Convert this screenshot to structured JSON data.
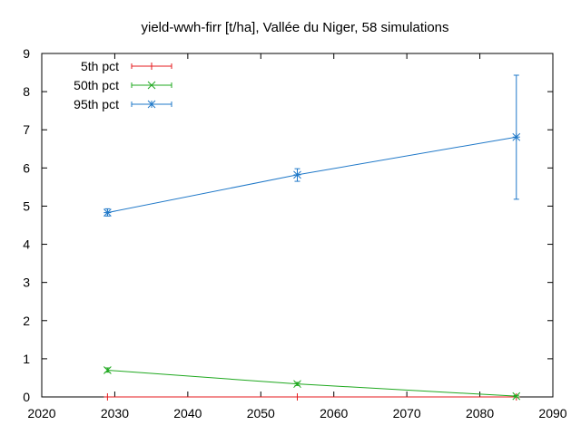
{
  "chart_data": {
    "type": "line",
    "title": "yield-wwh-firr [t/ha], Vallée du Niger, 58 simulations",
    "xlabel": "",
    "ylabel": "",
    "xlim": [
      2020,
      2090
    ],
    "ylim": [
      0,
      9
    ],
    "x_ticks": [
      "2020",
      "2030",
      "2040",
      "2050",
      "2060",
      "2070",
      "2080",
      "2090"
    ],
    "y_ticks": [
      "0",
      "1",
      "2",
      "3",
      "4",
      "5",
      "6",
      "7",
      "8",
      "9"
    ],
    "grid": false,
    "legend_position": "top-left",
    "series": [
      {
        "name": "5th pct",
        "color": "#e41a1c",
        "marker": "plus",
        "points": [
          {
            "x": 2029,
            "y": 0.0,
            "ylow": 0.0,
            "yhigh": 0.0
          },
          {
            "x": 2055,
            "y": 0.0,
            "ylow": 0.0,
            "yhigh": 0.0
          },
          {
            "x": 2085,
            "y": 0.0,
            "ylow": 0.0,
            "yhigh": 0.0
          }
        ]
      },
      {
        "name": "50th pct",
        "color": "#1fa81f",
        "marker": "cross",
        "points": [
          {
            "x": 2029,
            "y": 0.7,
            "ylow": 0.65,
            "yhigh": 0.76
          },
          {
            "x": 2055,
            "y": 0.34,
            "ylow": 0.3,
            "yhigh": 0.38
          },
          {
            "x": 2085,
            "y": 0.02,
            "ylow": 0.0,
            "yhigh": 0.04
          }
        ]
      },
      {
        "name": "95th pct",
        "color": "#1f78c8",
        "marker": "star",
        "points": [
          {
            "x": 2029,
            "y": 4.83,
            "ylow": 4.74,
            "yhigh": 4.93
          },
          {
            "x": 2055,
            "y": 5.82,
            "ylow": 5.65,
            "yhigh": 5.98
          },
          {
            "x": 2085,
            "y": 6.81,
            "ylow": 5.18,
            "yhigh": 8.43
          }
        ]
      }
    ]
  }
}
